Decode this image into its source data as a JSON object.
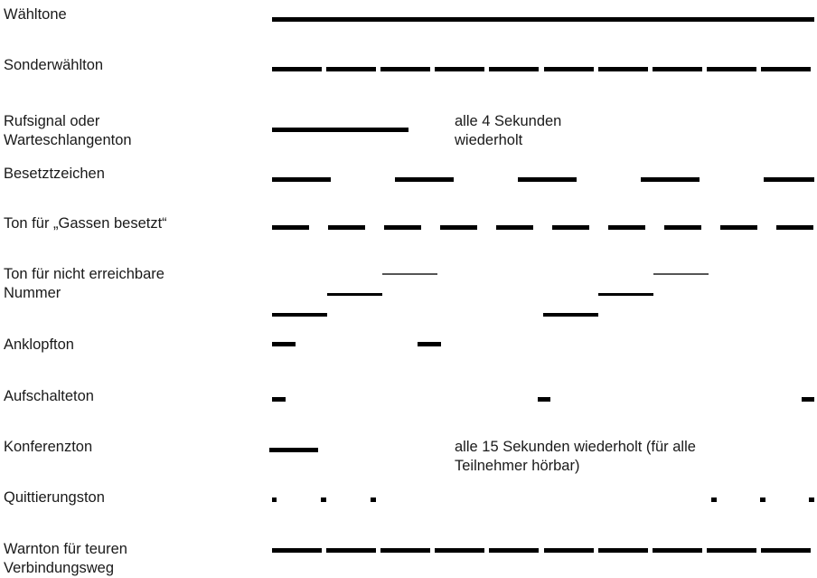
{
  "rows": [
    {
      "label": "Wähltone",
      "pattern_name": "dial-tone-pattern"
    },
    {
      "label": "Sonderwählton",
      "pattern_name": "special-dial-tone-pattern"
    },
    {
      "label": "Rufsignal oder\nWarteschlangenton",
      "pattern_name": "ringing-signal-pattern",
      "note": "alle 4 Sekunden\nwiederholt"
    },
    {
      "label": "Besetztzeichen",
      "pattern_name": "busy-signal-pattern"
    },
    {
      "label": "Ton für „Gassen besetzt“",
      "pattern_name": "lines-busy-tone-pattern"
    },
    {
      "label": "Ton für nicht erreichbare\nNummer",
      "pattern_name": "unreachable-number-tone-pattern"
    },
    {
      "label": "Anklopfton",
      "pattern_name": "call-waiting-tone-pattern"
    },
    {
      "label": "Aufschalteton",
      "pattern_name": "intrusion-tone-pattern"
    },
    {
      "label": "Konferenzton",
      "pattern_name": "conference-tone-pattern",
      "note": "alle 15 Sekunden wiederholt (für alle\nTeilnehmer hörbar)"
    },
    {
      "label": "Quittierungston",
      "pattern_name": "acknowledgement-tone-pattern"
    },
    {
      "label": "Warnton für teuren\nVerbindungsweg",
      "pattern_name": "expensive-route-warning-tone-pattern"
    }
  ],
  "colors": {
    "line": "#000000",
    "thin_line": "#555555",
    "text": "#1a1a1a"
  }
}
